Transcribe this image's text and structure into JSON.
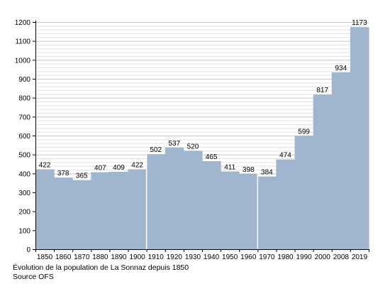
{
  "chart_data": {
    "type": "bar",
    "categories": [
      "1850",
      "1860",
      "1870",
      "1880",
      "1890",
      "1900",
      "1910",
      "1920",
      "1930",
      "1940",
      "1950",
      "1960",
      "1970",
      "1980",
      "1990",
      "2000",
      "2008",
      "2019"
    ],
    "values": [
      422,
      378,
      365,
      407,
      409,
      422,
      502,
      537,
      520,
      465,
      411,
      398,
      384,
      474,
      599,
      817,
      934,
      1173
    ],
    "y_ticks": [
      0,
      100,
      200,
      300,
      400,
      500,
      600,
      700,
      800,
      900,
      1000,
      1100,
      1200
    ],
    "ylim": [
      0,
      1200
    ],
    "minor_grid_step": 20,
    "grid": true,
    "bar_color": "#a0b6ce",
    "grid_color": "#c8c8c8",
    "separators_after": [
      "1900",
      "1960"
    ]
  },
  "caption": {
    "line1": "Évolution de la population de La Sonnaz depuis 1850",
    "line2": "Source OFS"
  }
}
